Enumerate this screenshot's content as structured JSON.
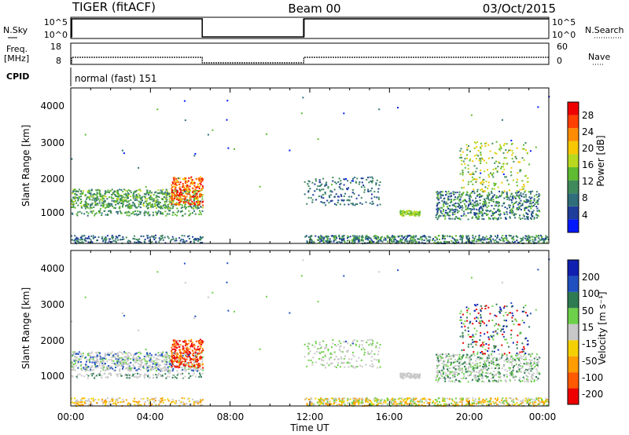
{
  "header": {
    "title": "TIGER (fitACF)",
    "beam": "Beam 00",
    "date": "03/Oct/2015"
  },
  "top_panels": {
    "nsky_label": "N.Sky",
    "nsearch_label": "N.Search",
    "nsky_ticks": [
      "10^5",
      "10^0"
    ],
    "nsearch_ticks": [
      "10^5",
      "10^0"
    ],
    "freq_label_1": "Freq.",
    "freq_label_2": "[MHz]",
    "freq_ticks": [
      "18",
      "8"
    ],
    "nave_label": "Nave",
    "nave_ticks": [
      "60",
      "0"
    ],
    "cpid_label": "CPID",
    "cpid_text": "normal (fast) 151"
  },
  "power_panel": {
    "ylabel": "Slant Range [km]",
    "yticks": [
      "4000",
      "3000",
      "2000",
      "1000"
    ],
    "colorbar_label": "Power [dB]",
    "colorbar_ticks": [
      "28",
      "24",
      "20",
      "16",
      "12",
      "8",
      "4"
    ],
    "colors": [
      "#0018ff",
      "#1f3d9a",
      "#2f6e7a",
      "#3f8a5a",
      "#5fbb30",
      "#b9d820",
      "#f7c800",
      "#ff8c00",
      "#ff4000",
      "#ee0000"
    ]
  },
  "velocity_panel": {
    "ylabel": "Slant Range [km]",
    "yticks": [
      "4000",
      "3000",
      "2000",
      "1000"
    ],
    "colorbar_label": "Velocity [m s⁻¹]",
    "colorbar_ticks": [
      "200",
      "100",
      "50",
      "15",
      "-15",
      "-50",
      "-100",
      "-200"
    ],
    "colors": [
      "#1020b0",
      "#2050c0",
      "#2e7b52",
      "#6dd04a",
      "#c8c8c8",
      "#f5d000",
      "#ff9c00",
      "#ff5a00",
      "#ee0000"
    ]
  },
  "xaxis": {
    "label": "Time UT",
    "ticks": [
      "00:00",
      "04:00",
      "08:00",
      "12:00",
      "16:00",
      "20:00",
      "00:00"
    ]
  },
  "chart_data": {
    "type": "heatmap",
    "title": "TIGER (fitACF)",
    "subtitle": "Beam 00",
    "date": "03/Oct/2015",
    "xlabel": "Time UT",
    "ylabel": "Slant Range [km]",
    "xlim_hours": [
      0,
      24
    ],
    "ylim_km": [
      200,
      4600
    ],
    "data_gap_hours": [
      6.6,
      11.7
    ],
    "power_range_db": [
      0,
      30
    ],
    "velocity_range_ms": [
      -250,
      250
    ],
    "echo_regions": [
      {
        "t": [
          0.0,
          6.6
        ],
        "range": [
          1150,
          1750
        ],
        "power": "8-16",
        "velocity": "-15..15"
      },
      {
        "t": [
          5.0,
          6.6
        ],
        "range": [
          1300,
          2100
        ],
        "power": "20-28",
        "velocity": "-200..-100"
      },
      {
        "t": [
          11.7,
          15.5
        ],
        "range": [
          1200,
          2100
        ],
        "power": "8-12",
        "velocity": "-15..15"
      },
      {
        "t": [
          16.5,
          17.5
        ],
        "range": [
          1000,
          1150
        ],
        "power": "16",
        "velocity": "-15..15"
      },
      {
        "t": [
          18.3,
          23.5
        ],
        "range": [
          900,
          3100
        ],
        "power": "8-16",
        "velocity": "-15..50"
      },
      {
        "t": [
          0.0,
          24.0
        ],
        "range": [
          250,
          450
        ],
        "power": "8-16",
        "velocity": "-100..15"
      }
    ]
  }
}
